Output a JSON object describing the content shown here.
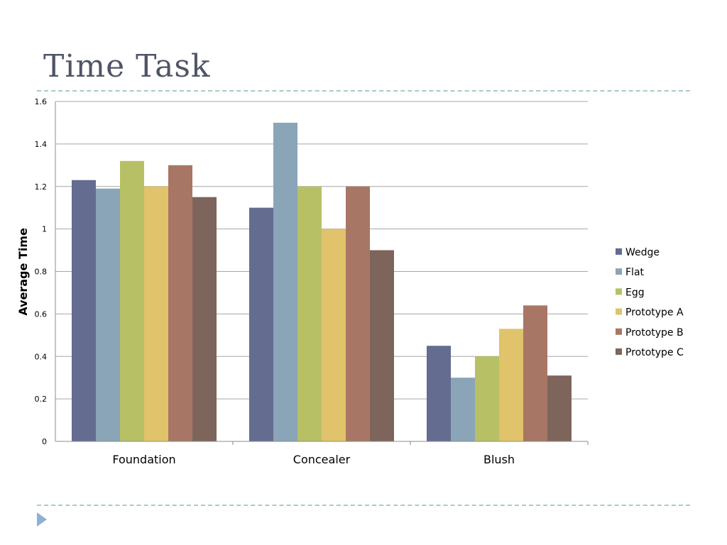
{
  "slide": {
    "title": "Time Task"
  },
  "chart_data": {
    "type": "bar",
    "title": "",
    "xlabel": "",
    "ylabel": "Average Time",
    "ylim": [
      0,
      1.6
    ],
    "yticks": [
      0,
      0.2,
      0.4,
      0.6,
      0.8,
      1,
      1.2,
      1.4,
      1.6
    ],
    "ytick_labels": [
      "0",
      "0.2",
      "0.4",
      "0.6",
      "0.8",
      "1",
      "1.2",
      "1.4",
      "1.6"
    ],
    "grid": true,
    "legend": "right",
    "categories": [
      "Foundation",
      "Concealer",
      "Blush"
    ],
    "series": [
      {
        "name": "Wedge",
        "color": "#646c8f",
        "values": [
          1.23,
          1.1,
          0.45
        ]
      },
      {
        "name": "Flat",
        "color": "#8aa5b8",
        "values": [
          1.19,
          1.5,
          0.3
        ]
      },
      {
        "name": "Egg",
        "color": "#b8c066",
        "values": [
          1.32,
          1.2,
          0.4
        ]
      },
      {
        "name": "Prototype A",
        "color": "#e0c36a",
        "values": [
          1.2,
          1.0,
          0.53
        ]
      },
      {
        "name": "Prototype B",
        "color": "#a87664",
        "values": [
          1.3,
          1.2,
          0.64
        ]
      },
      {
        "name": "Prototype C",
        "color": "#7d655b",
        "values": [
          1.15,
          0.9,
          0.31
        ]
      }
    ]
  },
  "nav": {
    "icon": "triangle-right-icon"
  }
}
